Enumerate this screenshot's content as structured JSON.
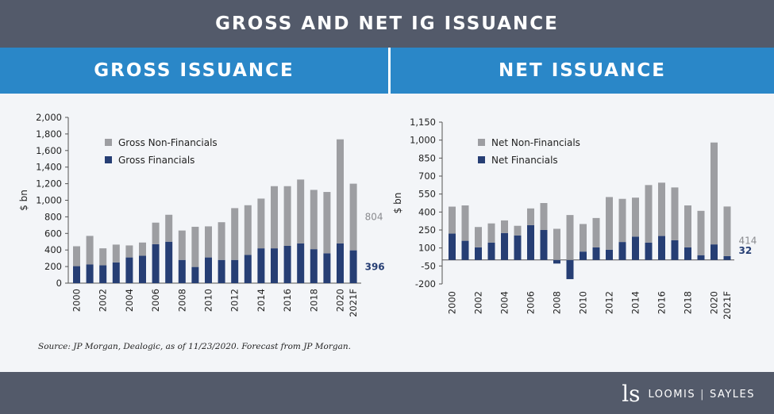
{
  "title": "GROSS AND NET IG ISSUANCE",
  "headers": {
    "left": "GROSS ISSUANCE",
    "right": "NET ISSUANCE"
  },
  "colors": {
    "financials": "#263e74",
    "nonfinancials": "#9d9ea2",
    "header_bar": "#535a6a",
    "panel_bar": "#2a87c8"
  },
  "source_text": "Source: JP Morgan, Dealogic, as of 11/23/2020. Forecast from JP Morgan.",
  "footer": {
    "logo_mark": "ls",
    "logo_text_1": "LOOMIS",
    "logo_text_2": "SAYLES"
  },
  "chart_data": [
    {
      "type": "bar",
      "stacked": true,
      "title": "GROSS ISSUANCE",
      "ylabel": "$ bn",
      "xlabel": "",
      "ylim": [
        0,
        2000
      ],
      "yticks": [
        0,
        200,
        400,
        600,
        800,
        1000,
        1200,
        1400,
        1600,
        1800,
        2000
      ],
      "ytick_labels": [
        "0",
        "200",
        "400",
        "600",
        "800",
        "1,000",
        "1,200",
        "1,400",
        "1,600",
        "1,800",
        "2,000"
      ],
      "categories": [
        "2000",
        "2001",
        "2002",
        "2003",
        "2004",
        "2005",
        "2006",
        "2007",
        "2008",
        "2009",
        "2010",
        "2011",
        "2012",
        "2013",
        "2014",
        "2015",
        "2016",
        "2017",
        "2018",
        "2019",
        "2020",
        "2021F"
      ],
      "x_tick_labels": [
        "2000",
        "",
        "2002",
        "",
        "2004",
        "",
        "2006",
        "",
        "2008",
        "",
        "2010",
        "",
        "2012",
        "",
        "2014",
        "",
        "2016",
        "",
        "2018",
        "",
        "2020",
        "2021F"
      ],
      "series": [
        {
          "name": "Gross Financials",
          "values": [
            205,
            225,
            215,
            250,
            310,
            330,
            470,
            500,
            280,
            195,
            310,
            280,
            280,
            340,
            420,
            420,
            450,
            480,
            410,
            360,
            480,
            396
          ]
        },
        {
          "name": "Gross Non-Financials",
          "values": [
            240,
            345,
            205,
            215,
            145,
            160,
            260,
            325,
            355,
            485,
            375,
            455,
            625,
            600,
            600,
            750,
            720,
            770,
            715,
            740,
            1255,
            804
          ]
        }
      ],
      "legend": [
        "Gross Non-Financials",
        "Gross Financials"
      ],
      "legend_position": "top-left",
      "annotations": [
        {
          "text": "804",
          "series": "Gross Non-Financials"
        },
        {
          "text": "396",
          "series": "Gross Financials"
        }
      ]
    },
    {
      "type": "bar",
      "stacked": true,
      "title": "NET ISSUANCE",
      "ylabel": "$ bn",
      "xlabel": "",
      "ylim": [
        -200,
        1150
      ],
      "yticks": [
        -200,
        -50,
        100,
        250,
        400,
        550,
        700,
        850,
        1000,
        1150
      ],
      "ytick_labels": [
        "-200",
        "-50",
        "100",
        "250",
        "400",
        "550",
        "700",
        "850",
        "1,000",
        "1,150"
      ],
      "categories": [
        "2000",
        "2001",
        "2002",
        "2003",
        "2004",
        "2005",
        "2006",
        "2007",
        "2008",
        "2009",
        "2010",
        "2011",
        "2012",
        "2013",
        "2014",
        "2015",
        "2016",
        "2017",
        "2018",
        "2019",
        "2020",
        "2021F"
      ],
      "x_tick_labels": [
        "2000",
        "",
        "2002",
        "",
        "2004",
        "",
        "2006",
        "",
        "2008",
        "",
        "2010",
        "",
        "2012",
        "",
        "2014",
        "",
        "2016",
        "",
        "2018",
        "",
        "2020",
        "2021F"
      ],
      "series": [
        {
          "name": "Net Financials",
          "values": [
            220,
            160,
            105,
            145,
            225,
            205,
            290,
            250,
            -30,
            -160,
            70,
            105,
            85,
            150,
            195,
            145,
            200,
            165,
            105,
            40,
            130,
            32
          ]
        },
        {
          "name": "Net Non-Financials",
          "values": [
            225,
            295,
            170,
            160,
            105,
            80,
            140,
            225,
            260,
            375,
            230,
            245,
            440,
            360,
            325,
            480,
            445,
            440,
            350,
            370,
            850,
            414
          ]
        }
      ],
      "legend": [
        "Net Non-Financials",
        "Net Financials"
      ],
      "legend_position": "top-left",
      "annotations": [
        {
          "text": "414",
          "series": "Net Non-Financials"
        },
        {
          "text": "32",
          "series": "Net Financials"
        }
      ]
    }
  ]
}
